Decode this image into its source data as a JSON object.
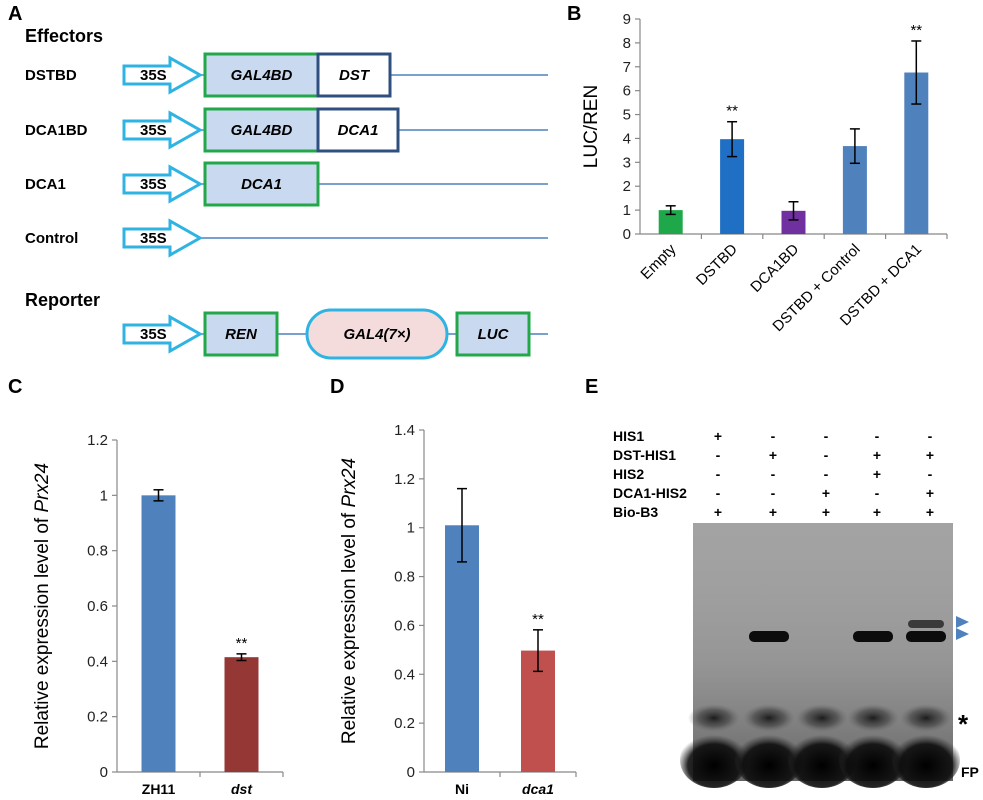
{
  "panels": {
    "a": "A",
    "b": "B",
    "c": "C",
    "d": "D",
    "e": "E"
  },
  "panel_a": {
    "effectors_heading": "Effectors",
    "reporter_heading": "Reporter",
    "rows": [
      {
        "label": "DSTBD",
        "promoter": "35S",
        "boxes": [
          "GAL4BD",
          "DST"
        ]
      },
      {
        "label": "DCA1BD",
        "promoter": "35S",
        "boxes": [
          "GAL4BD",
          "DCA1"
        ]
      },
      {
        "label": "DCA1",
        "promoter": "35S",
        "boxes": [
          "DCA1"
        ]
      },
      {
        "label": "Control",
        "promoter": "35S",
        "boxes": []
      }
    ],
    "reporter": {
      "promoter": "35S",
      "ren": "REN",
      "gal4": "GAL4(7×)",
      "luc": "LUC"
    },
    "colors": {
      "arrow": "#2fb3e3",
      "green_box": "#22a84a",
      "dark_box": "#2f4f7f",
      "box_fill": "#c9d9ef",
      "gal4_fill": "#f4dcdc",
      "line": "#4f81bd"
    }
  },
  "chart_data": [
    {
      "id": "B",
      "type": "bar",
      "title": "",
      "xlabel": "",
      "ylabel": "LUC/REN",
      "ylim": [
        0,
        9
      ],
      "yticks": [
        "0",
        "1",
        "2",
        "3",
        "4",
        "5",
        "6",
        "7",
        "8",
        "9"
      ],
      "categories": [
        "Empty",
        "DSTBD",
        "DCA1BD",
        "DSTBD + Control",
        "DSTBD + DCA1"
      ],
      "values": [
        1.0,
        3.97,
        0.97,
        3.68,
        6.76
      ],
      "errors": [
        0.18,
        0.73,
        0.38,
        0.72,
        1.32
      ],
      "significance": [
        "",
        "**",
        "",
        "",
        "**"
      ],
      "colors": [
        "#1fa84a",
        "#1f6fc5",
        "#7030a0",
        "#4f81bd",
        "#4f81bd"
      ],
      "grid": false
    },
    {
      "id": "C",
      "type": "bar",
      "title": "",
      "xlabel": "",
      "ylabel_prefix": "Relative expression level of ",
      "ylabel_gene": "Prx24",
      "ylim": [
        0,
        1.2
      ],
      "yticks": [
        "0",
        "0.2",
        "0.4",
        "0.6",
        "0.8",
        "1",
        "1.2"
      ],
      "categories": [
        "ZH11",
        "dst"
      ],
      "italic_categories": [
        false,
        true
      ],
      "values": [
        1.0,
        0.415
      ],
      "errors": [
        0.02,
        0.012
      ],
      "significance": [
        "",
        "**"
      ],
      "colors": [
        "#4f81bd",
        "#953735"
      ],
      "grid": false
    },
    {
      "id": "D",
      "type": "bar",
      "title": "",
      "xlabel": "",
      "ylabel_prefix": "Relative expression level of ",
      "ylabel_gene": "Prx24",
      "ylim": [
        0,
        1.4
      ],
      "yticks": [
        "0",
        "0.2",
        "0.4",
        "0.6",
        "0.8",
        "1",
        "1.2",
        "1.4"
      ],
      "categories": [
        "Ni",
        "dca1"
      ],
      "italic_categories": [
        false,
        true
      ],
      "values": [
        1.01,
        0.497
      ],
      "errors": [
        0.15,
        0.085
      ],
      "significance": [
        "",
        "**"
      ],
      "colors": [
        "#4f81bd",
        "#c0504d"
      ],
      "grid": false
    }
  ],
  "panel_e": {
    "row_labels": [
      "HIS1",
      "DST-HIS1",
      "HIS2",
      "DCA1-HIS2",
      "Bio-B3"
    ],
    "lanes": [
      [
        "+",
        "-",
        "-",
        "-",
        "+"
      ],
      [
        "-",
        "+",
        "-",
        "-",
        "+"
      ],
      [
        "-",
        "-",
        "-",
        "+",
        "+"
      ],
      [
        "-",
        "+",
        "+",
        "-",
        "+"
      ],
      [
        "-",
        "+",
        "-",
        "+",
        "+"
      ]
    ],
    "asterisk": "*",
    "fp_label": "FP",
    "arrow_color": "#4f81bd"
  }
}
